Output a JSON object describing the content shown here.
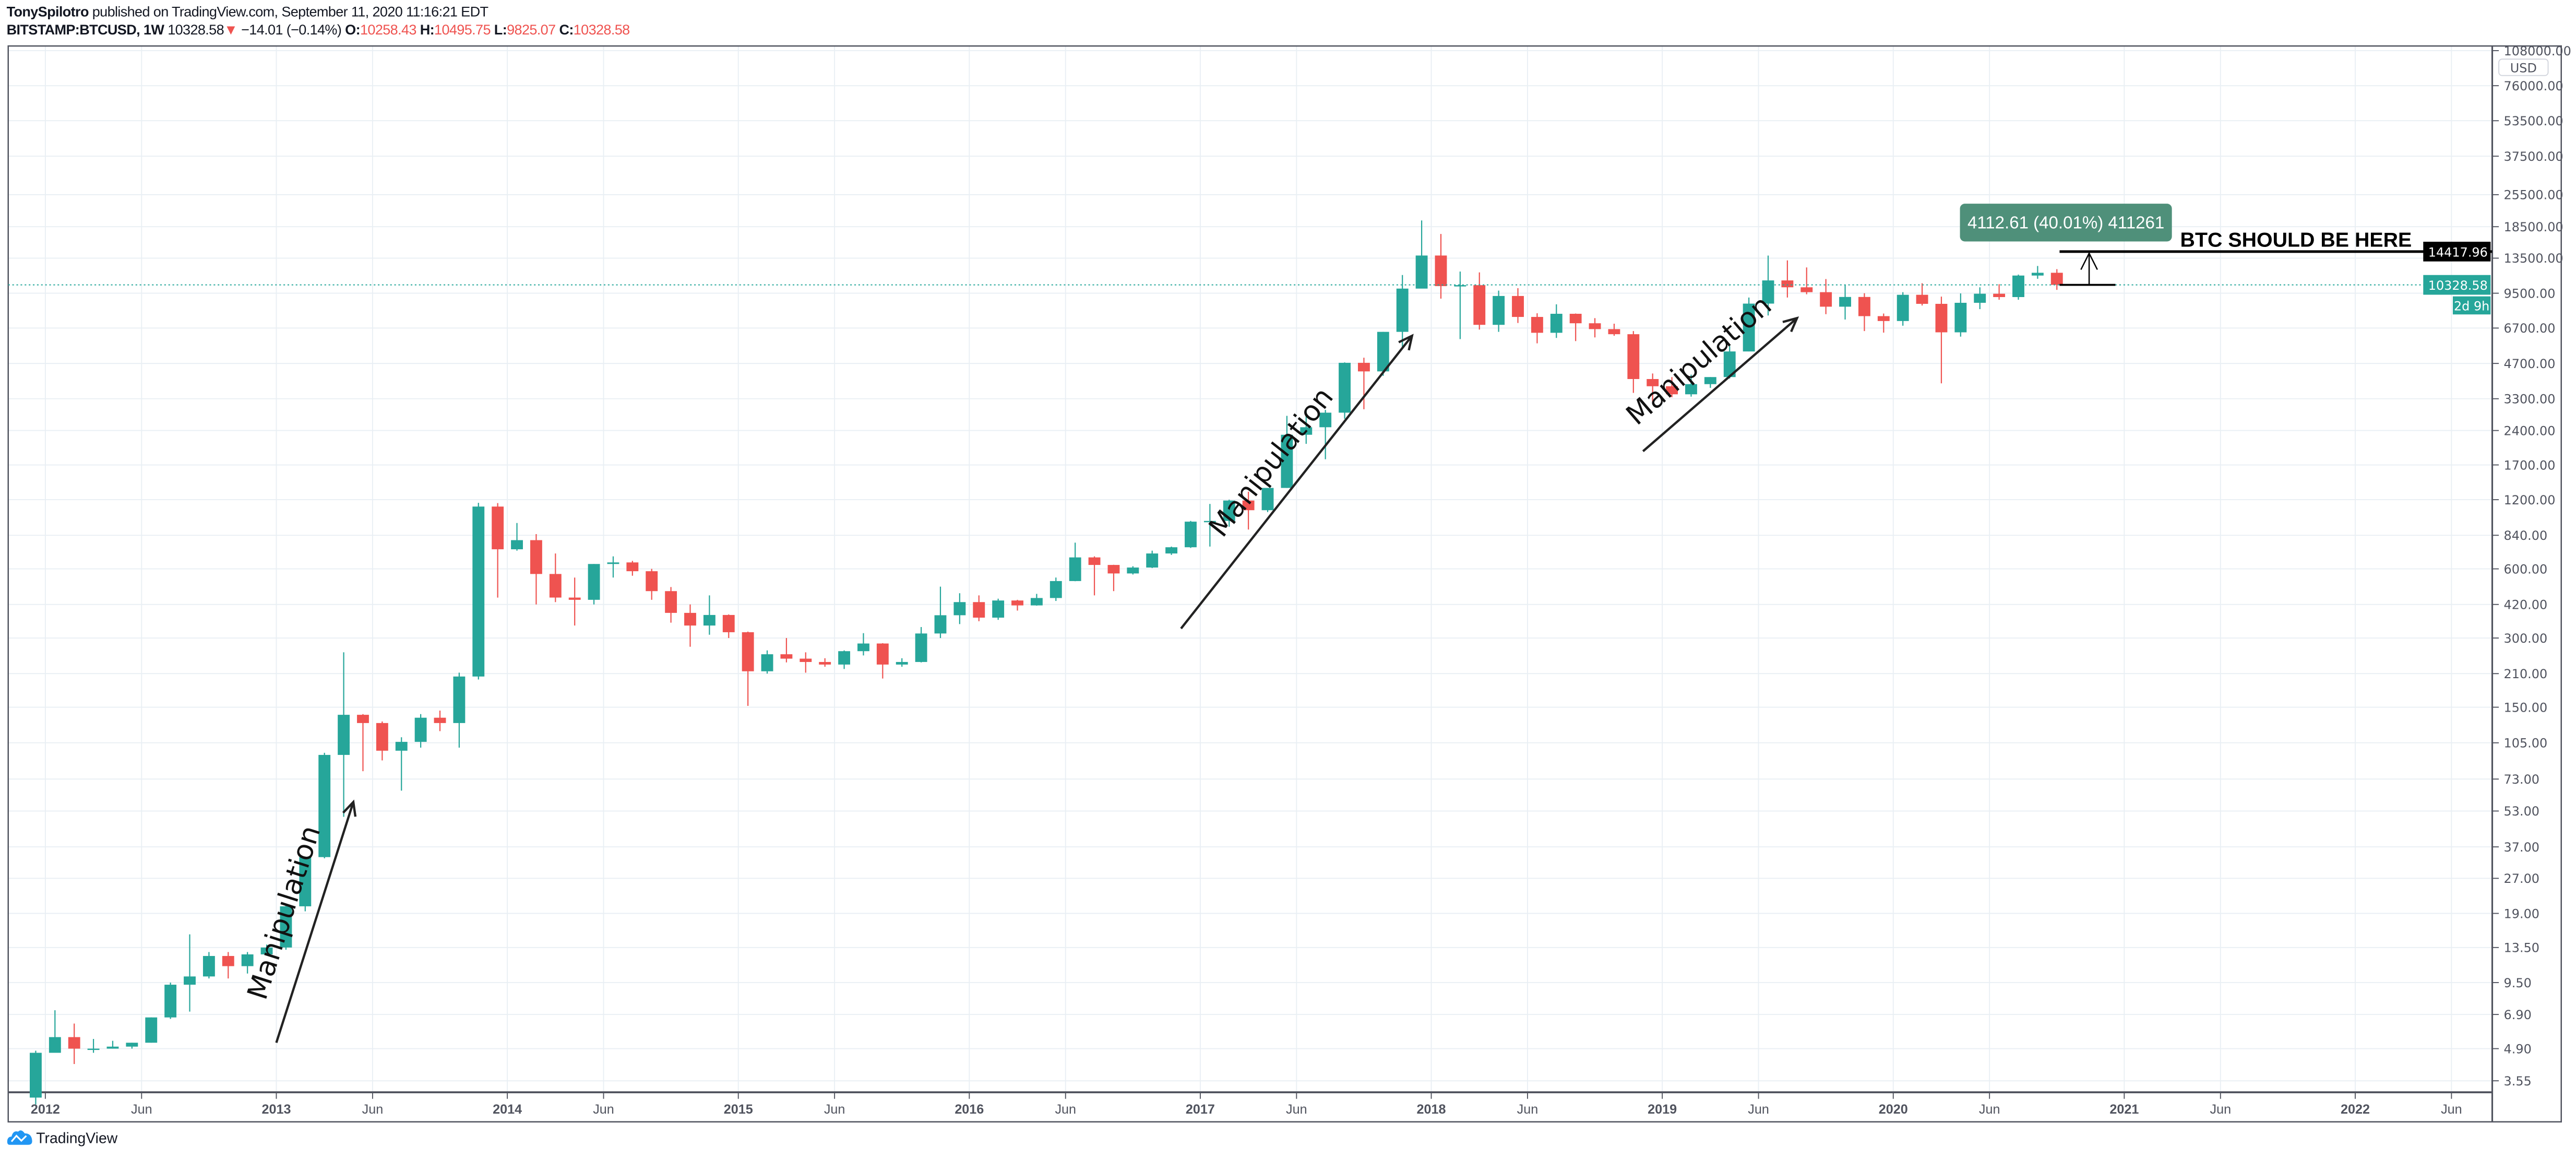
{
  "header": {
    "author": "TonySpilotro",
    "published": " published on TradingView.com, September 11, 2020 11:16:21 EDT",
    "symbol": "BITSTAMP:BTCUSD, 1W",
    "last": "10328.58",
    "change": "−14.01 (−0.14%)",
    "o_label": "O:",
    "o": "10258.43",
    "h_label": "H:",
    "h": "10495.75",
    "l_label": "L:",
    "l": "9825.07",
    "c_label": "C:",
    "c": "10328.58"
  },
  "footer": {
    "logo_text": "TradingView",
    "logo_icon": "tradingview-cloud-icon"
  },
  "colors": {
    "up": "#26a69a",
    "down": "#ef5350",
    "grid": "#e9eff4",
    "axis": "#50535e",
    "measure_box": "#4f907a",
    "target_line": "#000000"
  },
  "chart_data": {
    "type": "candlestick",
    "scale": "log",
    "currency": "USD",
    "ylim": [
      3.3,
      108000
    ],
    "y_ticks": [
      "108000.00",
      "76000.00",
      "53500.00",
      "37500.00",
      "25500.00",
      "18500.00",
      "13500.00",
      "9500.00",
      "6700.00",
      "4700.00",
      "3300.00",
      "2400.00",
      "1700.00",
      "1200.00",
      "840.00",
      "600.00",
      "420.00",
      "300.00",
      "210.00",
      "150.00",
      "105.00",
      "73.00",
      "53.00",
      "37.00",
      "27.00",
      "19.00",
      "13.50",
      "9.50",
      "6.90",
      "4.90",
      "3.55"
    ],
    "x_ticks": [
      {
        "label": "2012",
        "date": "2012-01"
      },
      {
        "label": "Jun",
        "date": "2012-06"
      },
      {
        "label": "2013",
        "date": "2013-01"
      },
      {
        "label": "Jun",
        "date": "2013-06"
      },
      {
        "label": "2014",
        "date": "2014-01"
      },
      {
        "label": "Jun",
        "date": "2014-06"
      },
      {
        "label": "2015",
        "date": "2015-01"
      },
      {
        "label": "Jun",
        "date": "2015-06"
      },
      {
        "label": "2016",
        "date": "2016-01"
      },
      {
        "label": "Jun",
        "date": "2016-06"
      },
      {
        "label": "2017",
        "date": "2017-01"
      },
      {
        "label": "Jun",
        "date": "2017-06"
      },
      {
        "label": "2018",
        "date": "2018-01"
      },
      {
        "label": "Jun",
        "date": "2018-06"
      },
      {
        "label": "2019",
        "date": "2019-01"
      },
      {
        "label": "Jun",
        "date": "2019-06"
      },
      {
        "label": "2020",
        "date": "2020-01"
      },
      {
        "label": "Jun",
        "date": "2020-06"
      },
      {
        "label": "2021",
        "date": "2021-01"
      },
      {
        "label": "Jun",
        "date": "2021-06"
      },
      {
        "label": "2022",
        "date": "2022-01"
      },
      {
        "label": "Jun",
        "date": "2022-06"
      }
    ],
    "grid": true,
    "candles_start": "2011-12",
    "candles_ohlc": [
      [
        3.0,
        4.8,
        2.8,
        4.7
      ],
      [
        4.7,
        7.2,
        4.7,
        5.5
      ],
      [
        5.5,
        6.3,
        4.2,
        4.9
      ],
      [
        4.9,
        5.4,
        4.7,
        4.9
      ],
      [
        4.9,
        5.3,
        4.9,
        5.0
      ],
      [
        5.0,
        5.2,
        4.9,
        5.2
      ],
      [
        5.2,
        6.7,
        5.2,
        6.7
      ],
      [
        6.7,
        9.5,
        6.6,
        9.3
      ],
      [
        9.3,
        15.4,
        7.1,
        10.1
      ],
      [
        10.1,
        12.9,
        9.9,
        12.4
      ],
      [
        12.4,
        12.9,
        9.9,
        11.2
      ],
      [
        11.2,
        12.9,
        10.4,
        12.6
      ],
      [
        12.6,
        13.9,
        12.5,
        13.5
      ],
      [
        13.5,
        20.8,
        13.2,
        20.4
      ],
      [
        20.4,
        33.4,
        19.4,
        33.4
      ],
      [
        33.4,
        95,
        33,
        93
      ],
      [
        93,
        260,
        50,
        139
      ],
      [
        139,
        140,
        79,
        128
      ],
      [
        128,
        130,
        88,
        97
      ],
      [
        97,
        111,
        65,
        106
      ],
      [
        106,
        140,
        100,
        135
      ],
      [
        135,
        145,
        118,
        128
      ],
      [
        128,
        212,
        100,
        204
      ],
      [
        204,
        1163,
        198,
        1120
      ],
      [
        1120,
        1160,
        450,
        730
      ],
      [
        730,
        950,
        720,
        800
      ],
      [
        800,
        850,
        420,
        570
      ],
      [
        570,
        700,
        430,
        450
      ],
      [
        450,
        550,
        340,
        440
      ],
      [
        440,
        630,
        420,
        630
      ],
      [
        630,
        680,
        550,
        640
      ],
      [
        640,
        650,
        560,
        586
      ],
      [
        586,
        600,
        440,
        480
      ],
      [
        480,
        500,
        350,
        386
      ],
      [
        386,
        420,
        275,
        340
      ],
      [
        340,
        460,
        310,
        378
      ],
      [
        378,
        380,
        300,
        318
      ],
      [
        318,
        320,
        152,
        215
      ],
      [
        215,
        265,
        210,
        255
      ],
      [
        255,
        300,
        235,
        244
      ],
      [
        244,
        260,
        212,
        236
      ],
      [
        236,
        245,
        225,
        230
      ],
      [
        230,
        265,
        220,
        263
      ],
      [
        263,
        315,
        252,
        284
      ],
      [
        284,
        285,
        200,
        230
      ],
      [
        230,
        245,
        225,
        236
      ],
      [
        236,
        335,
        235,
        314
      ],
      [
        314,
        502,
        300,
        377
      ],
      [
        377,
        470,
        345,
        430
      ],
      [
        430,
        460,
        355,
        368
      ],
      [
        368,
        445,
        360,
        437
      ],
      [
        437,
        440,
        395,
        416
      ],
      [
        416,
        467,
        415,
        448
      ],
      [
        448,
        550,
        435,
        531
      ],
      [
        531,
        780,
        530,
        673
      ],
      [
        673,
        680,
        460,
        624
      ],
      [
        624,
        625,
        480,
        573
      ],
      [
        573,
        616,
        567,
        608
      ],
      [
        608,
        720,
        605,
        700
      ],
      [
        700,
        750,
        690,
        745
      ],
      [
        745,
        970,
        740,
        963
      ],
      [
        963,
        1150,
        750,
        970
      ],
      [
        970,
        1200,
        915,
        1190
      ],
      [
        1190,
        1300,
        890,
        1080
      ],
      [
        1080,
        1350,
        1060,
        1350
      ],
      [
        1350,
        2780,
        1350,
        2300
      ],
      [
        2300,
        3000,
        2100,
        2480
      ],
      [
        2480,
        2950,
        1800,
        2870
      ],
      [
        2870,
        4750,
        2700,
        4730
      ],
      [
        4730,
        4980,
        2970,
        4340
      ],
      [
        4340,
        6450,
        4150,
        6450
      ],
      [
        6450,
        11400,
        5500,
        9950
      ],
      [
        9950,
        19700,
        10900,
        13860
      ],
      [
        13860,
        17200,
        9000,
        10200
      ],
      [
        10200,
        11800,
        6000,
        10300
      ],
      [
        10300,
        11700,
        6600,
        6920
      ],
      [
        6920,
        9750,
        6450,
        9240
      ],
      [
        9240,
        9990,
        7050,
        7490
      ],
      [
        7490,
        7770,
        5750,
        6390
      ],
      [
        6390,
        8500,
        6070,
        7730
      ],
      [
        7730,
        7750,
        5880,
        7030
      ],
      [
        7030,
        7400,
        6100,
        6630
      ],
      [
        6630,
        7000,
        6200,
        6300
      ],
      [
        6300,
        6500,
        3500,
        4020
      ],
      [
        4020,
        4250,
        3150,
        3740
      ],
      [
        3740,
        4100,
        3350,
        3450
      ],
      [
        3450,
        4200,
        3370,
        3820
      ],
      [
        3820,
        4100,
        3680,
        4100
      ],
      [
        4100,
        5600,
        4040,
        5300
      ],
      [
        5300,
        9100,
        5300,
        8560
      ],
      [
        8560,
        13850,
        7600,
        10800
      ],
      [
        10800,
        13200,
        9100,
        10080
      ],
      [
        10080,
        12300,
        9400,
        9600
      ],
      [
        9600,
        10950,
        7700,
        8300
      ],
      [
        8300,
        10350,
        7300,
        9150
      ],
      [
        9150,
        9500,
        6500,
        7550
      ],
      [
        7550,
        7750,
        6400,
        7190
      ],
      [
        7190,
        9600,
        6860,
        9350
      ],
      [
        9350,
        10500,
        8400,
        8540
      ],
      [
        8540,
        9180,
        3850,
        6420
      ],
      [
        6420,
        9480,
        6150,
        8630
      ],
      [
        8630,
        10080,
        8100,
        9450
      ],
      [
        9450,
        10400,
        8900,
        9140
      ],
      [
        9140,
        11450,
        8900,
        11340
      ],
      [
        11340,
        12480,
        10980,
        11660
      ],
      [
        11660,
        12090,
        9825,
        10328.58
      ]
    ],
    "last_price_label": "10328.58",
    "countdown_label": "2d 9h",
    "target_price_label": "14417.96",
    "target_price": 14417.96,
    "current_price": 10328.58,
    "measure_label": "4112.61 (40.01%) 411261",
    "target_text": "BTC SHOULD BE HERE",
    "annotations": [
      {
        "text": "Manipulation",
        "from": [
          "2013-01",
          5.2
        ],
        "to": [
          "2013-05",
          58
        ]
      },
      {
        "text": "Manipulation",
        "from": [
          "2016-12",
          330
        ],
        "to": [
          "2017-12",
          6200
        ]
      },
      {
        "text": "Manipulation",
        "from": [
          "2018-12",
          1950
        ],
        "to": [
          "2019-08",
          7400
        ]
      }
    ]
  }
}
